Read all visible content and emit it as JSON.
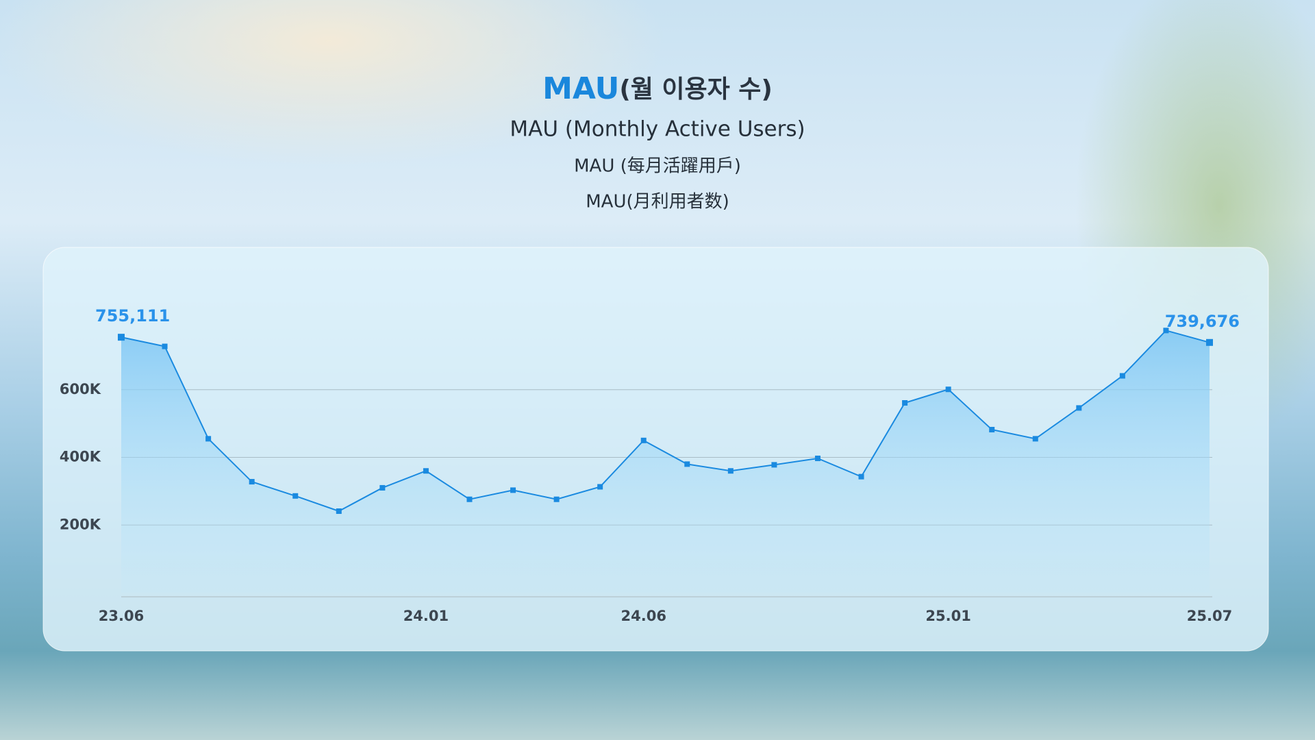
{
  "title_highlight": "MAU",
  "title": "(월 이용자 수)",
  "subtitles": [
    "MAU (Monthly Active Users)",
    "MAU (每月活躍用戶)",
    "MAU(月利用者数)"
  ],
  "chart_data": {
    "type": "line",
    "color": "#1a8ae0",
    "categories": [
      "23.06",
      null,
      null,
      null,
      null,
      null,
      null,
      "24.01",
      null,
      null,
      null,
      null,
      "24.06",
      null,
      null,
      null,
      null,
      null,
      null,
      "25.01",
      null,
      null,
      null,
      null,
      null,
      "25.07"
    ],
    "values": [
      755111,
      728000,
      455000,
      328000,
      286000,
      241000,
      310000,
      360000,
      276000,
      303000,
      276000,
      313000,
      450000,
      380000,
      360000,
      378000,
      397000,
      343000,
      561000,
      601000,
      482000,
      455000,
      546000,
      641000,
      775000,
      739676
    ],
    "value_labels": [
      "755,111",
      null,
      null,
      null,
      null,
      null,
      null,
      null,
      null,
      null,
      null,
      null,
      null,
      null,
      null,
      null,
      null,
      null,
      null,
      null,
      null,
      null,
      null,
      null,
      null,
      "739,676"
    ],
    "ylim": [
      0,
      800000
    ],
    "yticks": [
      {
        "value": 200000,
        "label": "200K"
      },
      {
        "value": 400000,
        "label": "400K"
      },
      {
        "value": 600000,
        "label": "600K"
      }
    ],
    "grid": true
  }
}
